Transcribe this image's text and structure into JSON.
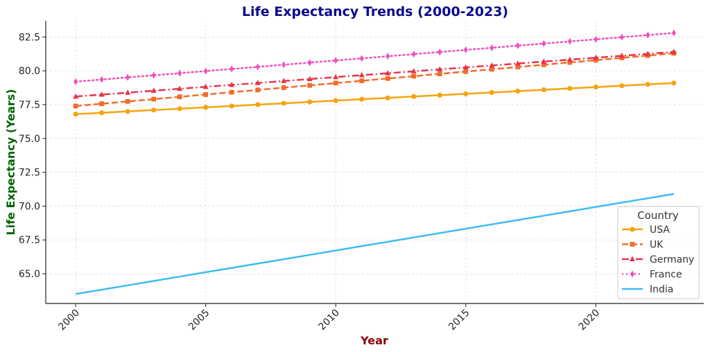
{
  "chart_data": {
    "type": "line",
    "title": "Life Expectancy Trends (2000-2023)",
    "xlabel": "Year",
    "ylabel": "Life Expectancy (Years)",
    "xlim": [
      1998.85,
      2024.15
    ],
    "ylim": [
      62.8,
      83.7
    ],
    "xticks": [
      2000,
      2005,
      2010,
      2015,
      2020
    ],
    "yticks": [
      65.0,
      67.5,
      70.0,
      72.5,
      75.0,
      77.5,
      80.0,
      82.5
    ],
    "ytick_labels": [
      "65.0",
      "67.5",
      "70.0",
      "72.5",
      "75.0",
      "77.5",
      "80.0",
      "82.5"
    ],
    "grid": true,
    "legend": {
      "title": "Country",
      "position": "lower-right"
    },
    "x": [
      2000,
      2001,
      2002,
      2003,
      2004,
      2005,
      2006,
      2007,
      2008,
      2009,
      2010,
      2011,
      2012,
      2013,
      2014,
      2015,
      2016,
      2017,
      2018,
      2019,
      2020,
      2021,
      2022,
      2023
    ],
    "series": [
      {
        "name": "USA",
        "start": 76.8,
        "end": 79.1,
        "color": "#f5a40f",
        "marker": "circle",
        "dash": ""
      },
      {
        "name": "UK",
        "start": 77.4,
        "end": 81.3,
        "color": "#f26c2b",
        "marker": "square",
        "dash": "9,4"
      },
      {
        "name": "Germany",
        "start": 78.1,
        "end": 81.4,
        "color": "#e8334a",
        "marker": "triangle",
        "dash": "10,4,2,4"
      },
      {
        "name": "France",
        "start": 79.2,
        "end": 82.8,
        "color": "#f24fbd",
        "marker": "diamond",
        "dash": "2,4"
      },
      {
        "name": "India",
        "start": 63.5,
        "end": 70.9,
        "color": "#3bbcf2",
        "marker": "none",
        "dash": ""
      }
    ],
    "colors": {
      "title": "#0a0a8c",
      "xlabel": "#8b0000",
      "ylabel": "#006400"
    }
  }
}
